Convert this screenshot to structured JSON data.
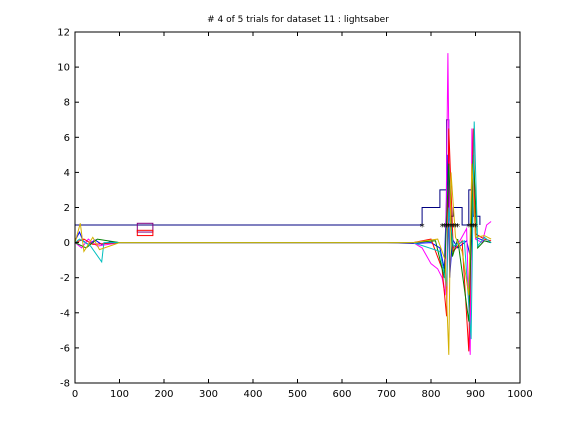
{
  "chart_data": {
    "type": "line",
    "title": "# 4 of 5 trials for dataset 11 : lightsaber",
    "xlabel": "",
    "ylabel": "",
    "xlim": [
      0,
      1000
    ],
    "ylim": [
      -8,
      12
    ],
    "xticks": [
      0,
      100,
      200,
      300,
      400,
      500,
      600,
      700,
      800,
      900,
      1000
    ],
    "yticks": [
      -8,
      -6,
      -4,
      -2,
      0,
      2,
      4,
      6,
      8,
      10,
      12
    ],
    "grid": false,
    "legend": "none",
    "series": [
      {
        "color": "#000080",
        "points": [
          [
            0,
            1
          ],
          [
            780,
            1
          ],
          [
            780,
            2
          ],
          [
            820,
            2
          ],
          [
            820,
            3
          ],
          [
            835,
            3
          ],
          [
            835,
            7
          ],
          [
            840,
            7
          ],
          [
            840,
            1.5
          ],
          [
            850,
            1.5
          ],
          [
            850,
            2
          ],
          [
            870,
            2
          ],
          [
            870,
            1
          ],
          [
            885,
            1
          ],
          [
            885,
            3
          ],
          [
            895,
            3
          ],
          [
            895,
            1.5
          ],
          [
            910,
            1.5
          ],
          [
            910,
            1
          ]
        ]
      },
      {
        "color": "#0000ff",
        "points": [
          [
            0,
            0.1
          ],
          [
            10,
            0.6
          ],
          [
            18,
            0.1
          ],
          [
            30,
            -0.1
          ],
          [
            45,
            0.15
          ],
          [
            60,
            -0.1
          ],
          [
            80,
            0.05
          ],
          [
            100,
            0
          ],
          [
            300,
            0
          ],
          [
            500,
            0
          ],
          [
            700,
            0
          ],
          [
            760,
            -0.05
          ],
          [
            800,
            0
          ],
          [
            820,
            -0.3
          ],
          [
            830,
            -1.5
          ],
          [
            838,
            5
          ],
          [
            842,
            -2
          ],
          [
            848,
            0.2
          ],
          [
            860,
            -0.3
          ],
          [
            880,
            0.1
          ],
          [
            890,
            -1
          ],
          [
            895,
            5
          ],
          [
            900,
            0.3
          ],
          [
            920,
            0.1
          ],
          [
            935,
            0
          ]
        ]
      },
      {
        "color": "#ff00ff",
        "points": [
          [
            0,
            0
          ],
          [
            15,
            -0.3
          ],
          [
            30,
            0.2
          ],
          [
            50,
            -0.2
          ],
          [
            100,
            0
          ],
          [
            300,
            0
          ],
          [
            600,
            0
          ],
          [
            760,
            0
          ],
          [
            780,
            -0.3
          ],
          [
            800,
            -1.2
          ],
          [
            815,
            -1.5
          ],
          [
            825,
            -2
          ],
          [
            832,
            -3
          ],
          [
            838,
            10.8
          ],
          [
            842,
            1.5
          ],
          [
            850,
            -0.3
          ],
          [
            865,
            0.1
          ],
          [
            880,
            0.8
          ],
          [
            888,
            -6.4
          ],
          [
            892,
            6.5
          ],
          [
            900,
            0.2
          ],
          [
            915,
            0
          ],
          [
            925,
            1
          ],
          [
            935,
            1.2
          ]
        ]
      },
      {
        "color": "#ff0000",
        "points": [
          [
            0,
            0
          ],
          [
            20,
            0.2
          ],
          [
            40,
            -0.1
          ],
          [
            100,
            0
          ],
          [
            400,
            0
          ],
          [
            760,
            0
          ],
          [
            800,
            0.2
          ],
          [
            825,
            -1.5
          ],
          [
            835,
            -4.2
          ],
          [
            840,
            6.5
          ],
          [
            850,
            -0.5
          ],
          [
            870,
            0.1
          ],
          [
            885,
            -6.2
          ],
          [
            895,
            6.5
          ],
          [
            900,
            0.5
          ],
          [
            920,
            0.2
          ],
          [
            935,
            0.1
          ]
        ]
      },
      {
        "color": "#008000",
        "points": [
          [
            0,
            0
          ],
          [
            25,
            -0.3
          ],
          [
            50,
            0.2
          ],
          [
            100,
            0
          ],
          [
            500,
            0
          ],
          [
            760,
            0
          ],
          [
            810,
            0.1
          ],
          [
            830,
            -2
          ],
          [
            840,
            4.5
          ],
          [
            848,
            -0.8
          ],
          [
            860,
            0.2
          ],
          [
            885,
            -4.5
          ],
          [
            895,
            5
          ],
          [
            905,
            -0.3
          ],
          [
            920,
            0.1
          ],
          [
            935,
            0
          ]
        ]
      },
      {
        "color": "#00bfbf",
        "points": [
          [
            0,
            0
          ],
          [
            10,
            0.2
          ],
          [
            35,
            -0.2
          ],
          [
            60,
            -1.1
          ],
          [
            65,
            0
          ],
          [
            100,
            0
          ],
          [
            500,
            0
          ],
          [
            760,
            0
          ],
          [
            820,
            -0.5
          ],
          [
            835,
            -2.5
          ],
          [
            840,
            2
          ],
          [
            850,
            -0.2
          ],
          [
            875,
            0.1
          ],
          [
            890,
            -5.5
          ],
          [
            897,
            6.9
          ],
          [
            905,
            -0.2
          ],
          [
            920,
            0.3
          ],
          [
            935,
            0
          ]
        ]
      },
      {
        "color": "#d4b000",
        "points": [
          [
            0,
            0
          ],
          [
            12,
            1.1
          ],
          [
            20,
            -0.5
          ],
          [
            40,
            0.3
          ],
          [
            55,
            -0.4
          ],
          [
            100,
            0
          ],
          [
            200,
            0
          ],
          [
            500,
            0
          ],
          [
            760,
            0
          ],
          [
            815,
            0.2
          ],
          [
            832,
            -1
          ],
          [
            840,
            -6.4
          ],
          [
            845,
            4
          ],
          [
            855,
            0.3
          ],
          [
            870,
            -0.5
          ],
          [
            885,
            -3
          ],
          [
            892,
            4.5
          ],
          [
            900,
            0.3
          ],
          [
            920,
            0.4
          ],
          [
            935,
            0.2
          ]
        ]
      }
    ],
    "segment_markers": [
      780,
      825,
      830,
      835,
      840,
      845,
      850,
      855,
      860,
      885,
      890,
      895,
      900
    ],
    "segment_marker_y": 1,
    "box_markers": [
      {
        "color": "#800080",
        "x": [
          140,
          175
        ],
        "y": [
          0.6,
          1.1
        ]
      },
      {
        "color": "#ff0000",
        "x": [
          140,
          175
        ],
        "y": [
          0.4,
          0.7
        ]
      }
    ]
  }
}
